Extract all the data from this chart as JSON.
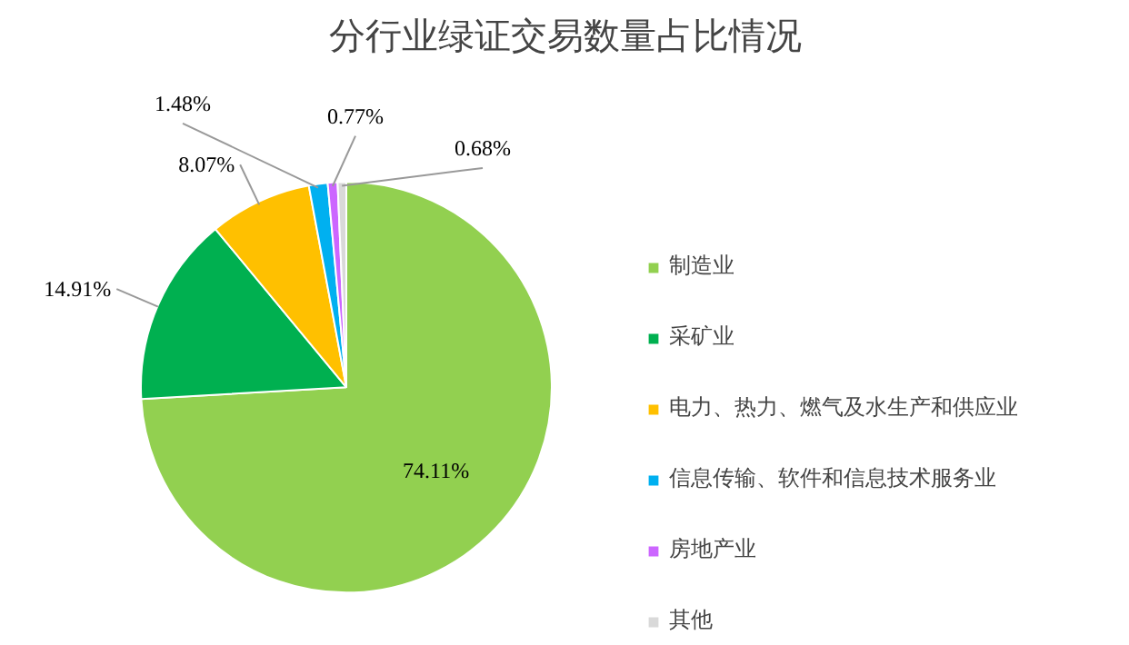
{
  "chart_data": {
    "type": "pie",
    "title": "分行业绿证交易数量占比情况",
    "categories": [
      "制造业",
      "采矿业",
      "电力、热力、燃气及水生产和供应业",
      "信息传输、软件和信息技术服务业",
      "房地产业",
      "其他"
    ],
    "values": [
      74.11,
      14.91,
      8.07,
      1.48,
      0.77,
      0.68
    ],
    "colors": [
      "#92d050",
      "#00b050",
      "#ffc000",
      "#00b0f0",
      "#cc66ff",
      "#d9d9d9"
    ],
    "value_labels": [
      "74.11%",
      "14.91%",
      "8.07%",
      "1.48%",
      "0.77%",
      "0.68%"
    ],
    "legend": "right"
  }
}
